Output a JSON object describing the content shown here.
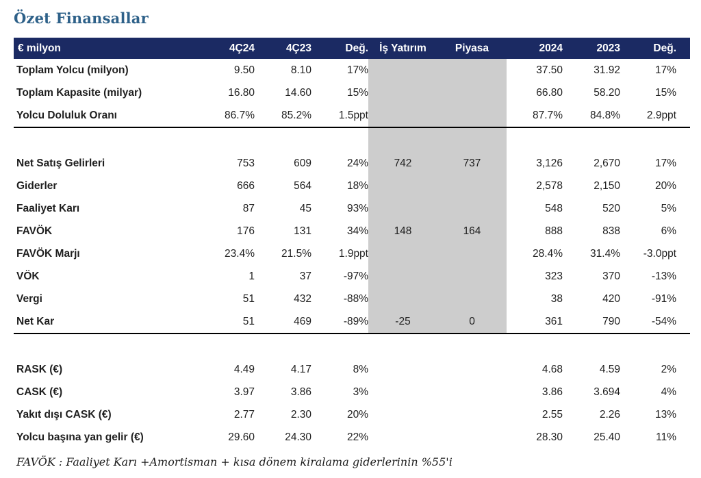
{
  "page_title": "Özet Finansallar",
  "footnote": "FAVÖK :  Faaliyet Karı +Amortisman + kısa dönem kiralama giderlerinin %55'i",
  "table": {
    "columns": [
      {
        "key": "label",
        "label": "€ milyon"
      },
      {
        "key": "q4_24",
        "label": "4Ç24"
      },
      {
        "key": "q4_23",
        "label": "4Ç23"
      },
      {
        "key": "deg_q",
        "label": "Değ."
      },
      {
        "key": "is_yatirim",
        "label": "İş Yatırım"
      },
      {
        "key": "piyasa",
        "label": "Piyasa"
      },
      {
        "key": "y2024",
        "label": "2024"
      },
      {
        "key": "y2023",
        "label": "2023"
      },
      {
        "key": "deg_y",
        "label": "Değ."
      }
    ],
    "rows": [
      {
        "type": "data",
        "shaded": true,
        "label": "Toplam Yolcu (milyon)",
        "values": [
          "9.50",
          "8.10",
          "17%",
          "",
          "",
          "37.50",
          "31.92",
          "17%"
        ]
      },
      {
        "type": "data",
        "shaded": true,
        "label": "Toplam Kapasite (milyar)",
        "values": [
          "16.80",
          "14.60",
          "15%",
          "",
          "",
          "66.80",
          "58.20",
          "15%"
        ]
      },
      {
        "type": "data",
        "shaded": true,
        "label": "Yolcu Doluluk Oranı",
        "values": [
          "86.7%",
          "85.2%",
          "1.5ppt",
          "",
          "",
          "87.7%",
          "84.8%",
          "2.9ppt"
        ],
        "border_bottom": true
      },
      {
        "type": "spacer",
        "shaded": true,
        "label": "",
        "values": [
          "",
          "",
          "",
          "",
          "",
          "",
          "",
          ""
        ]
      },
      {
        "type": "data",
        "shaded": true,
        "label": "Net Satış Gelirleri",
        "values": [
          "753",
          "609",
          "24%",
          "742",
          "737",
          "3,126",
          "2,670",
          "17%"
        ]
      },
      {
        "type": "data",
        "shaded": true,
        "label": "Giderler",
        "values": [
          "666",
          "564",
          "18%",
          "",
          "",
          "2,578",
          "2,150",
          "20%"
        ]
      },
      {
        "type": "data",
        "shaded": true,
        "label": "Faaliyet Karı",
        "values": [
          "87",
          "45",
          "93%",
          "",
          "",
          "548",
          "520",
          "5%"
        ]
      },
      {
        "type": "data",
        "shaded": true,
        "label": "FAVÖK",
        "values": [
          "176",
          "131",
          "34%",
          "148",
          "164",
          "888",
          "838",
          "6%"
        ]
      },
      {
        "type": "data",
        "shaded": true,
        "label": "FAVÖK Marjı",
        "values": [
          "23.4%",
          "21.5%",
          "1.9ppt",
          "",
          "",
          "28.4%",
          "31.4%",
          "-3.0ppt"
        ]
      },
      {
        "type": "data",
        "shaded": true,
        "label": "VÖK",
        "values": [
          "1",
          "37",
          "-97%",
          "",
          "",
          "323",
          "370",
          "-13%"
        ]
      },
      {
        "type": "data",
        "shaded": true,
        "label": "Vergi",
        "values": [
          "51",
          "432",
          "-88%",
          "",
          "",
          "38",
          "420",
          "-91%"
        ]
      },
      {
        "type": "data",
        "shaded": true,
        "label": "Net Kar",
        "values": [
          "51",
          "469",
          "-89%",
          "-25",
          "0",
          "361",
          "790",
          "-54%"
        ],
        "border_bottom": true
      },
      {
        "type": "spacer",
        "shaded": false,
        "label": "",
        "values": [
          "",
          "",
          "",
          "",
          "",
          "",
          "",
          ""
        ]
      },
      {
        "type": "data",
        "shaded": false,
        "label": "RASK (€)",
        "values": [
          "4.49",
          "4.17",
          "8%",
          "",
          "",
          "4.68",
          "4.59",
          "2%"
        ]
      },
      {
        "type": "data",
        "shaded": false,
        "label": "CASK (€)",
        "values": [
          "3.97",
          "3.86",
          "3%",
          "",
          "",
          "3.86",
          "3.694",
          "4%"
        ]
      },
      {
        "type": "data",
        "shaded": false,
        "label": "Yakıt dışı CASK  (€)",
        "values": [
          "2.77",
          "2.30",
          "20%",
          "",
          "",
          "2.55",
          "2.26",
          "13%"
        ]
      },
      {
        "type": "data",
        "shaded": false,
        "label": "Yolcu başına yan gelir (€)",
        "values": [
          "29.60",
          "24.30",
          "22%",
          "",
          "",
          "28.30",
          "25.40",
          "11%"
        ]
      }
    ]
  }
}
